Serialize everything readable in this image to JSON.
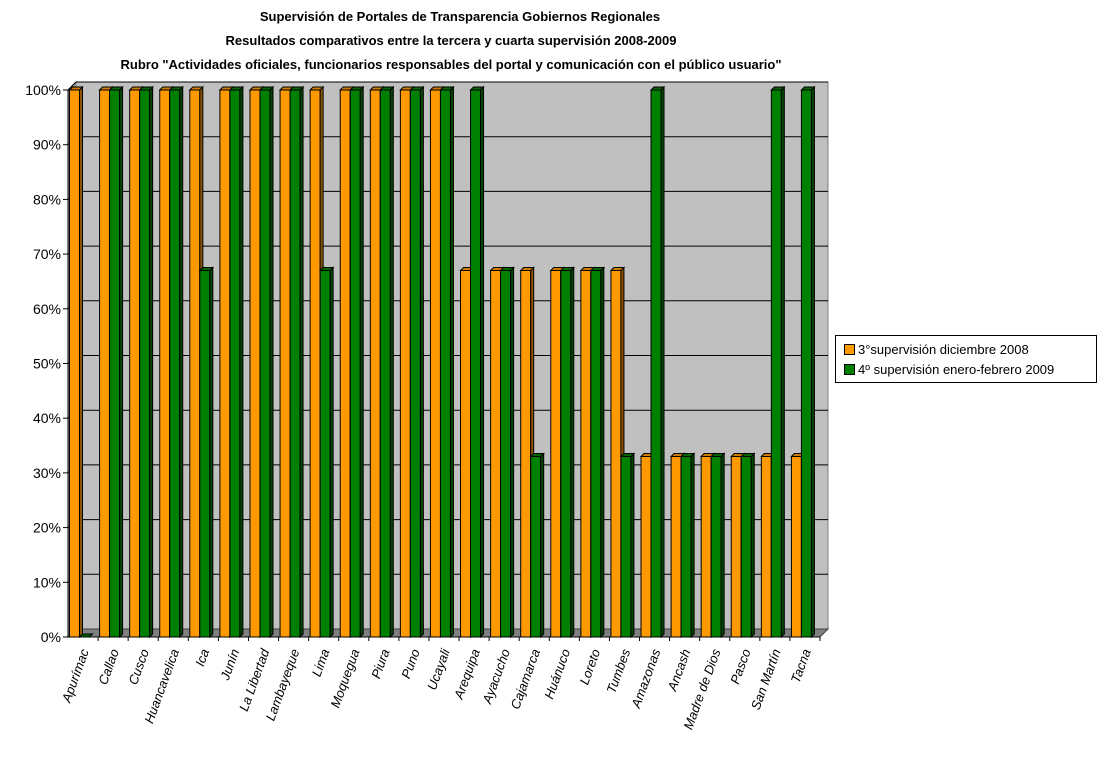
{
  "chart_data": {
    "type": "bar",
    "title_lines": [
      "Supervisión de Portales de Transparencia Gobiernos Regionales",
      "Resultados comparativos entre la tercera y cuarta supervisión 2008-2009",
      "Rubro \"Actividades oficiales, funcionarios responsables del portal y comunicación  con el público usuario\""
    ],
    "categories": [
      "Apurímac",
      "Callao",
      "Cusco",
      "Huancavelica",
      "Ica",
      "Junín",
      "La Libertad",
      "Lambayeque",
      "Lima",
      "Moquegua",
      "Piura",
      "Puno",
      "Ucayali",
      "Arequipa",
      "Ayacucho",
      "Cajamarca",
      "Huánuco",
      "Loreto",
      "Tumbes",
      "Amazonas",
      "Ancash",
      "Madre de Dios",
      "Pasco",
      "San Martín",
      "Tacna"
    ],
    "series": [
      {
        "name": "3°supervisión diciembre 2008",
        "color": "#ff9900",
        "values": [
          100,
          100,
          100,
          100,
          100,
          100,
          100,
          100,
          100,
          100,
          100,
          100,
          100,
          67,
          67,
          67,
          67,
          67,
          67,
          33,
          33,
          33,
          33,
          33,
          33
        ]
      },
      {
        "name": "4º supervisión enero-febrero 2009",
        "color": "#008000",
        "values": [
          0,
          100,
          100,
          100,
          67,
          100,
          100,
          100,
          67,
          100,
          100,
          100,
          100,
          100,
          67,
          33,
          67,
          67,
          33,
          100,
          33,
          33,
          33,
          100,
          100
        ]
      }
    ],
    "y_ticks": [
      "0%",
      "10%",
      "20%",
      "30%",
      "40%",
      "50%",
      "60%",
      "70%",
      "80%",
      "90%",
      "100%"
    ],
    "ylim": [
      0,
      100
    ],
    "grid": true,
    "legend_position": "right",
    "plot_background": "#c0c0c0",
    "style": "3d-clustered-column"
  }
}
